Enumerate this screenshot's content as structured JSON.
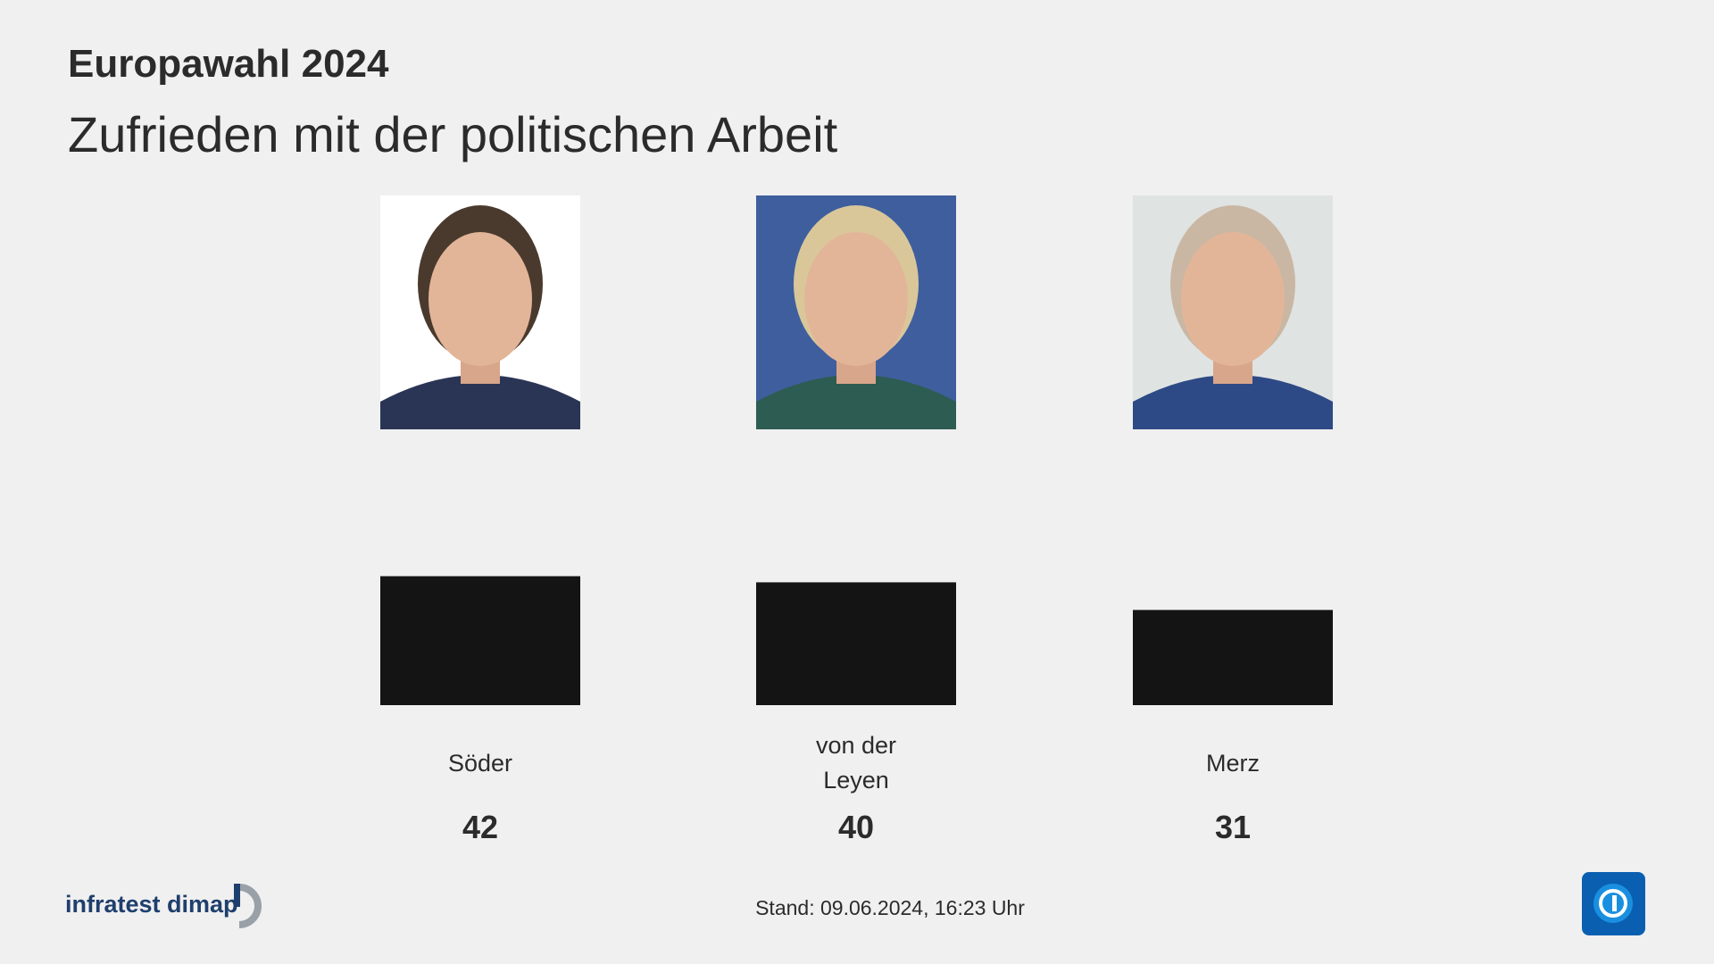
{
  "chart_data": {
    "type": "bar",
    "title": "Europawahl 2024",
    "subtitle": "Zufrieden mit der politischen Arbeit",
    "categories": [
      "Söder",
      "von der Leyen",
      "Merz"
    ],
    "values": [
      42,
      40,
      31
    ],
    "color": "#141414",
    "source": "infratest dimap",
    "footer": "Stand:  09.06.2024, 16:23 Uhr"
  }
}
